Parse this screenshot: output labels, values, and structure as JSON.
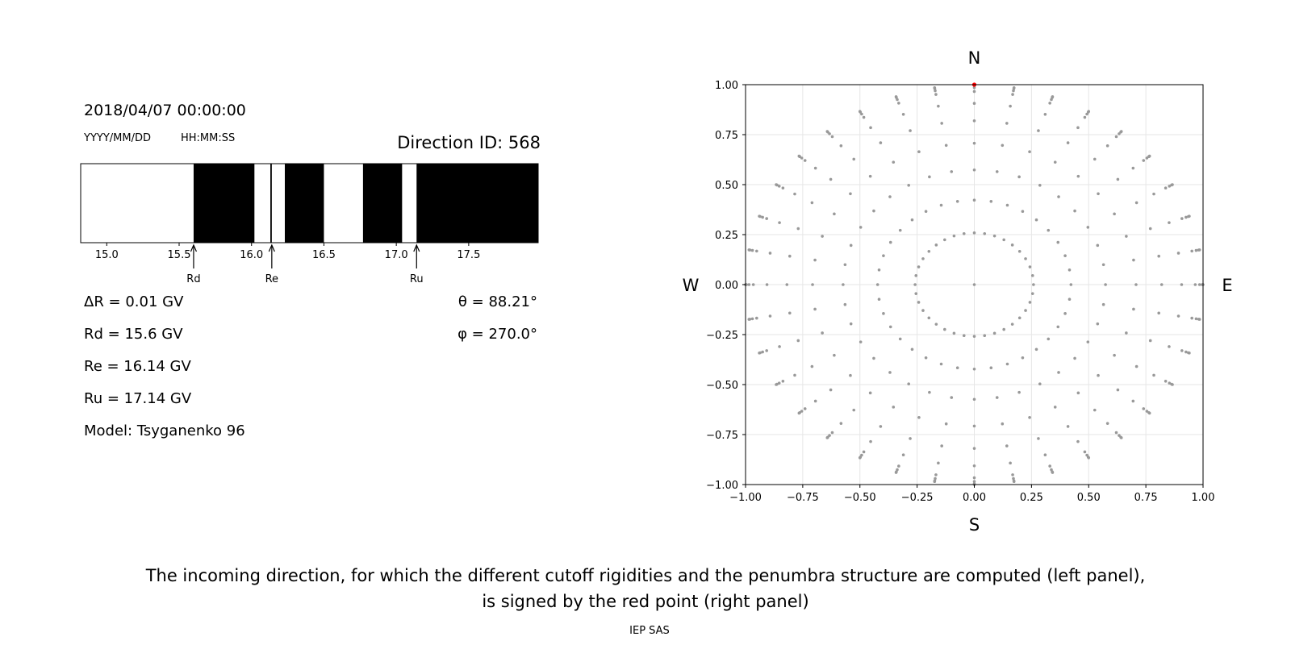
{
  "left_panel": {
    "datetime": "2018/04/07 00:00:00",
    "date_format": "YYYY/MM/DD",
    "time_format": "HH:MM:SS",
    "direction_id": "Direction ID: 568",
    "params": {
      "delta_r": "ΔR = 0.01 GV",
      "rd": "Rd = 15.6 GV",
      "re": "Re = 16.14 GV",
      "ru": "Ru = 17.14 GV",
      "model": "Model: Tsyganenko 96"
    },
    "angles": {
      "theta": "θ = 88.21°",
      "phi": "φ = 270.0°"
    }
  },
  "chart_data": [
    {
      "type": "bar",
      "subtype": "penumbra-strip",
      "xlim": [
        14.82,
        17.98
      ],
      "xticks": [
        "15.0",
        "15.5",
        "16.0",
        "16.5",
        "17.0",
        "17.5"
      ],
      "tick_values": [
        15.0,
        15.5,
        16.0,
        16.5,
        17.0,
        17.5
      ],
      "forbidden_intervals": [
        [
          15.6,
          16.02
        ],
        [
          16.13,
          16.14
        ],
        [
          16.23,
          16.5
        ],
        [
          16.77,
          17.04
        ],
        [
          17.14,
          17.98
        ]
      ],
      "markers": [
        {
          "label": "Rd",
          "value": 15.6
        },
        {
          "label": "Re",
          "value": 16.14
        },
        {
          "label": "Ru",
          "value": 17.14
        }
      ],
      "colors": {
        "forbidden": "#000000",
        "allowed": "#ffffff"
      }
    },
    {
      "type": "scatter",
      "xlim": [
        -1.0,
        1.0
      ],
      "ylim": [
        -1.0,
        1.0
      ],
      "xticks": [
        "−1.00",
        "−0.75",
        "−0.50",
        "−0.25",
        "0.00",
        "0.25",
        "0.50",
        "0.75",
        "1.00"
      ],
      "yticks": [
        "1.00",
        "0.75",
        "0.50",
        "0.25",
        "0.00",
        "−0.25",
        "−0.50",
        "−0.75",
        "−1.00"
      ],
      "tick_values": [
        -1.0,
        -0.75,
        -0.5,
        -0.25,
        0.0,
        0.25,
        0.5,
        0.75,
        1.0
      ],
      "grid": true,
      "compass": {
        "north": "N",
        "south": "S",
        "west": "W",
        "east": "E"
      },
      "grid_series": {
        "name": "",
        "zenith_angles_deg": [
          0,
          15,
          25,
          35,
          45,
          55,
          65,
          75,
          80,
          85,
          90
        ],
        "azimuth_step_deg": 10,
        "projection_radius": "sin(zenith)",
        "color": "#999999"
      },
      "highlight": {
        "x": 0.0,
        "y": 1.0,
        "color": "#ff0000"
      }
    }
  ],
  "caption": {
    "line1": "The incoming direction, for which the different cutoff rigidities and the penumbra structure are computed (left panel),",
    "line2": "is signed by the red point (right panel)"
  },
  "credit": "IEP SAS"
}
